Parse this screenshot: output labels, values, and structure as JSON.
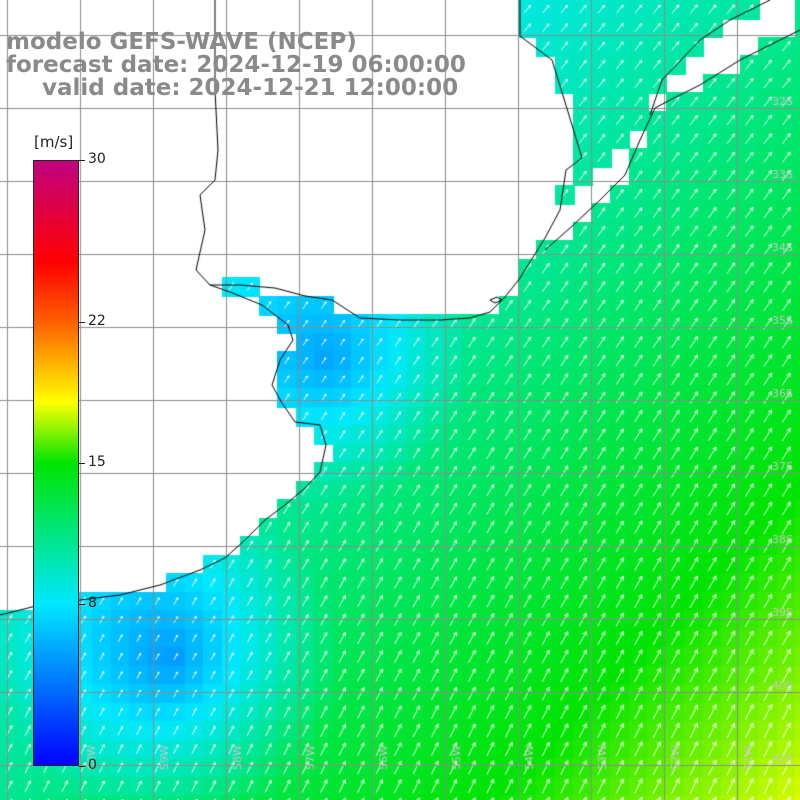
{
  "title": {
    "line1": "modelo GEFS-WAVE (NCEP)",
    "line2": "forecast date: 2024-12-19 06:00:00",
    "line3": "valid date: 2024-12-21 12:00:00"
  },
  "colorbar": {
    "unit": "[m/s]",
    "min": 0,
    "max": 30,
    "ticks": [
      {
        "value": 30,
        "label": "30"
      },
      {
        "value": 22,
        "label": "22"
      },
      {
        "value": 15,
        "label": "15"
      },
      {
        "value": 8,
        "label": "8"
      },
      {
        "value": 0,
        "label": "0"
      }
    ],
    "stops": [
      {
        "value": 0,
        "color": "#0000ff"
      },
      {
        "value": 8,
        "color": "#00e8ff"
      },
      {
        "value": 15,
        "color": "#00e400"
      },
      {
        "value": 18,
        "color": "#ffff00"
      },
      {
        "value": 22,
        "color": "#ff6000"
      },
      {
        "value": 25,
        "color": "#ff0000"
      },
      {
        "value": 30,
        "color": "#c00080"
      }
    ]
  },
  "map": {
    "land_color": "#ffffff",
    "grid_color": "#8c8c8c",
    "coast_color": "#000000",
    "lat_labels": [
      "32S",
      "33S",
      "34S",
      "35S",
      "36S",
      "37S",
      "38S",
      "39S",
      "40S",
      "41S"
    ],
    "lon_labels": [
      "60W",
      "59W",
      "58W",
      "57W",
      "56W",
      "55W",
      "54W",
      "53W",
      "52W",
      "51W"
    ]
  }
}
